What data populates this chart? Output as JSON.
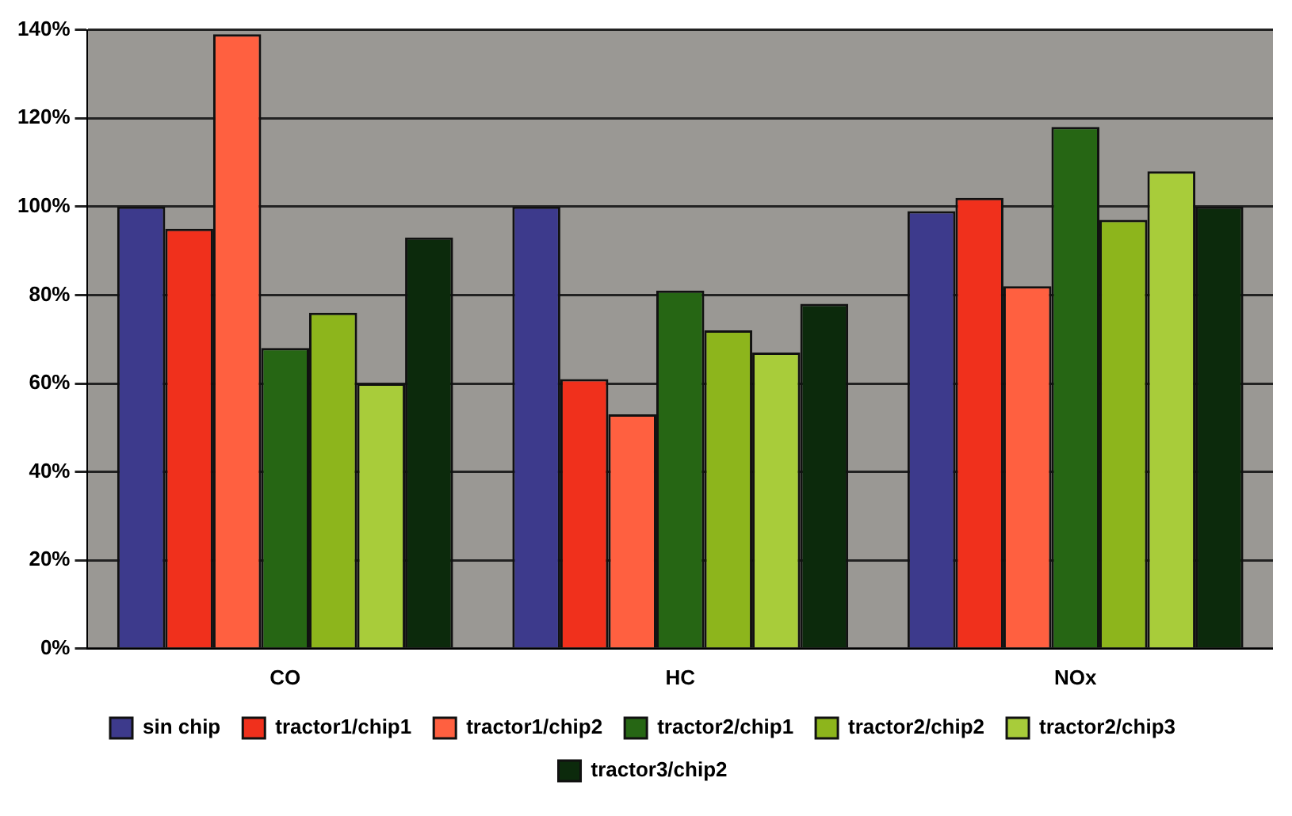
{
  "chart_data": {
    "type": "bar",
    "categories": [
      "CO",
      "HC",
      "NOx"
    ],
    "series": [
      {
        "name": "sin chip",
        "color": "#3d3a8c",
        "values": [
          100,
          100,
          99
        ]
      },
      {
        "name": "tractor1/chip1",
        "color": "#f0301c",
        "values": [
          95,
          61,
          102
        ]
      },
      {
        "name": "tractor1/chip2",
        "color": "#ff6040",
        "values": [
          139,
          53,
          82
        ]
      },
      {
        "name": "tractor2/chip1",
        "color": "#266614",
        "values": [
          68,
          81,
          118
        ]
      },
      {
        "name": "tractor2/chip2",
        "color": "#8db51c",
        "values": [
          76,
          72,
          97
        ]
      },
      {
        "name": "tractor2/chip3",
        "color": "#a8cc3a",
        "values": [
          60,
          67,
          108
        ]
      },
      {
        "name": "tractor3/chip2",
        "color": "#0c2a0c",
        "values": [
          93,
          78,
          100
        ]
      }
    ],
    "ylim": [
      0,
      140
    ],
    "yticks": [
      {
        "value": 0,
        "label": "0%"
      },
      {
        "value": 20,
        "label": "20%"
      },
      {
        "value": 40,
        "label": "40%"
      },
      {
        "value": 60,
        "label": "60%"
      },
      {
        "value": 80,
        "label": "80%"
      },
      {
        "value": 100,
        "label": "100%"
      },
      {
        "value": 120,
        "label": "120%"
      },
      {
        "value": 140,
        "label": "140%"
      }
    ],
    "grid": "y",
    "legend": "bottom"
  }
}
